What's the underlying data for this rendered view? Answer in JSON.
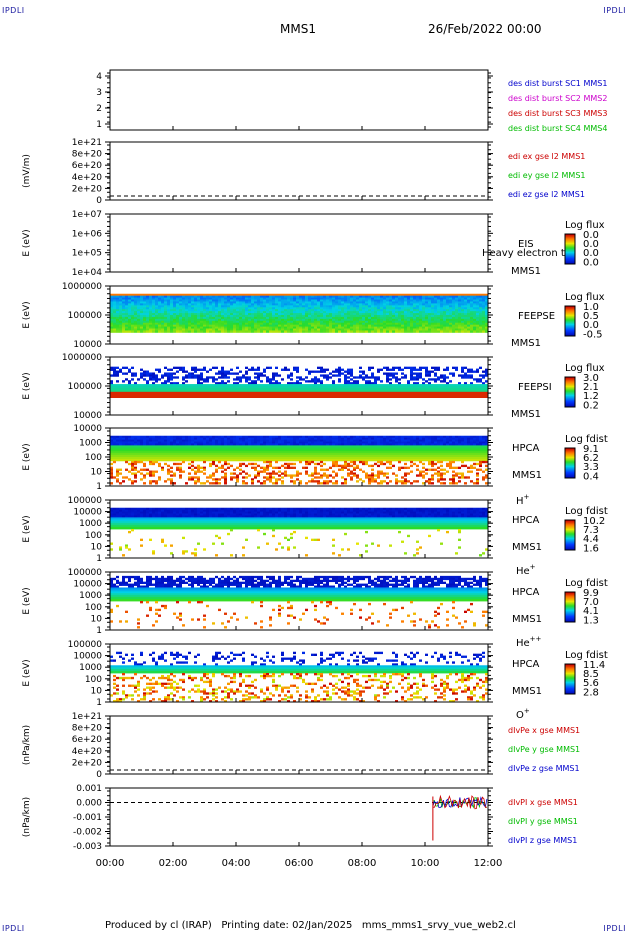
{
  "corners": {
    "top_left": "IPDLI",
    "top_right": "IPDLI",
    "bottom_left": "IPDLI",
    "bottom_right": "IPDLI"
  },
  "header": {
    "spacecraft": "MMS1",
    "date": "26/Feb/2022 00:00"
  },
  "footer": {
    "text": "Produced by cl (IRAP)   Printing date: 02/Jan/2025   mms_mms1_srvy_vue_web2.cl"
  },
  "time_axis": {
    "ticks": [
      "00:00",
      "02:00",
      "04:00",
      "06:00",
      "08:00",
      "10:00",
      "12:00"
    ]
  },
  "colors": {
    "blue": "#0000cc",
    "magenta": "#cc00cc",
    "red": "#cc0000",
    "green": "#00bb00",
    "dark_red": "#aa0000"
  },
  "panels": [
    {
      "id": "sc-config",
      "type": "line",
      "ylabel": "",
      "yticks": [
        "4",
        "3",
        "2",
        "1"
      ],
      "legend": [
        {
          "text": "des dist burst SC1 MMS1",
          "color": "#0000cc"
        },
        {
          "text": "des dist burst SC2 MMS2",
          "color": "#cc00cc"
        },
        {
          "text": "des dist burst SC3 MMS3",
          "color": "#cc0000"
        },
        {
          "text": "des dist burst SC4 MMS4",
          "color": "#00bb00"
        }
      ]
    },
    {
      "id": "edi",
      "type": "line",
      "ylabel": "(mV/m)",
      "yticks": [
        "1e+21",
        "8e+20",
        "6e+20",
        "4e+20",
        "2e+20",
        "0"
      ],
      "legend": [
        {
          "text": "edi ex gse l2 MMS1",
          "color": "#cc0000"
        },
        {
          "text": "edi ey gse l2 MMS1",
          "color": "#00bb00"
        },
        {
          "text": "edi ez gse l2 MMS1",
          "color": "#0000cc"
        }
      ]
    },
    {
      "id": "eis",
      "type": "spectrogram",
      "ylabel": "E (eV)",
      "yticks": [
        "1e+07",
        "1e+06",
        "1e+05",
        "1e+04"
      ],
      "right_labels": [
        "EIS",
        "MMS1"
      ],
      "overlay": "Heavy electron to",
      "colorbar": {
        "title": "Log flux",
        "ticks": [
          "0.0",
          "0.0",
          "0.0",
          "0.0"
        ]
      }
    },
    {
      "id": "feepse",
      "type": "spectrogram",
      "ylabel": "E (eV)",
      "yticks": [
        "1000000",
        "100000",
        "10000"
      ],
      "right_labels": [
        "FEEPSE",
        "MMS1"
      ],
      "colorbar": {
        "title": "Log flux",
        "ticks": [
          "1.0",
          "0.5",
          "0.0",
          "-0.5"
        ]
      }
    },
    {
      "id": "feepsi",
      "type": "spectrogram",
      "ylabel": "E (eV)",
      "yticks": [
        "1000000",
        "100000",
        "10000"
      ],
      "right_labels": [
        "FEEPSI",
        "MMS1"
      ],
      "colorbar": {
        "title": "Log flux",
        "ticks": [
          "3.0",
          "2.1",
          "1.2",
          "0.2"
        ]
      }
    },
    {
      "id": "hpca-h",
      "type": "spectrogram",
      "ylabel": "E (eV)",
      "yticks": [
        "10000",
        "1000",
        "100",
        "10",
        "1"
      ],
      "right_labels": [
        "HPCA",
        "MMS1",
        "H+"
      ],
      "colorbar": {
        "title": "Log fdist",
        "ticks": [
          "9.1",
          "6.2",
          "3.3",
          "0.4"
        ]
      }
    },
    {
      "id": "hpca-he",
      "type": "spectrogram",
      "ylabel": "E (eV)",
      "yticks": [
        "100000",
        "10000",
        "1000",
        "100",
        "10",
        "1"
      ],
      "right_labels": [
        "HPCA",
        "MMS1",
        "He+"
      ],
      "colorbar": {
        "title": "Log fdist",
        "ticks": [
          "10.2",
          "7.3",
          "4.4",
          "1.6"
        ]
      }
    },
    {
      "id": "hpca-hepp",
      "type": "spectrogram",
      "ylabel": "E (eV)",
      "yticks": [
        "100000",
        "10000",
        "1000",
        "100",
        "10",
        "1"
      ],
      "right_labels": [
        "HPCA",
        "MMS1",
        "He++"
      ],
      "colorbar": {
        "title": "Log fdist",
        "ticks": [
          "9.9",
          "7.0",
          "4.1",
          "1.3"
        ]
      }
    },
    {
      "id": "hpca-o",
      "type": "spectrogram",
      "ylabel": "E (eV)",
      "yticks": [
        "100000",
        "10000",
        "1000",
        "100",
        "10",
        "1"
      ],
      "right_labels": [
        "HPCA",
        "MMS1",
        "O+"
      ],
      "colorbar": {
        "title": "Log fdist",
        "ticks": [
          "11.4",
          "8.5",
          "5.6",
          "2.8"
        ]
      }
    },
    {
      "id": "divpe",
      "type": "line",
      "ylabel": "(nPa/km)",
      "yticks": [
        "1e+21",
        "8e+20",
        "6e+20",
        "4e+20",
        "2e+20",
        "0"
      ],
      "legend": [
        {
          "text": "dIvPe x gse MMS1",
          "color": "#cc0000"
        },
        {
          "text": "dIvPe y gse MMS1",
          "color": "#00bb00"
        },
        {
          "text": "dIvPe z gse MMS1",
          "color": "#0000cc"
        }
      ]
    },
    {
      "id": "divpi",
      "type": "line",
      "ylabel": "(nPa/km)",
      "yticks": [
        "0.001",
        "0.000",
        "-0.001",
        "-0.002",
        "-0.003"
      ],
      "legend": [
        {
          "text": "dIvPI x gse MMS1",
          "color": "#cc0000"
        },
        {
          "text": "dIvPI y gse MMS1",
          "color": "#00bb00"
        },
        {
          "text": "dIvPI z gse MMS1",
          "color": "#0000cc"
        }
      ]
    }
  ],
  "chart_data": {
    "type": "line",
    "title": "",
    "xlabel": "",
    "x": [
      "00:00",
      "02:00",
      "04:00",
      "06:00",
      "08:00",
      "10:00",
      "12:00"
    ],
    "series": [
      {
        "name": "dIvPI x gse MMS1",
        "t_start": "10:15",
        "t_end": "12:00",
        "ylim": [
          -0.003,
          0.001
        ]
      },
      {
        "name": "dIvPI y gse MMS1",
        "t_start": "10:15",
        "t_end": "12:00"
      },
      {
        "name": "dIvPI z gse MMS1",
        "t_start": "10:15",
        "t_end": "12:00"
      }
    ]
  }
}
